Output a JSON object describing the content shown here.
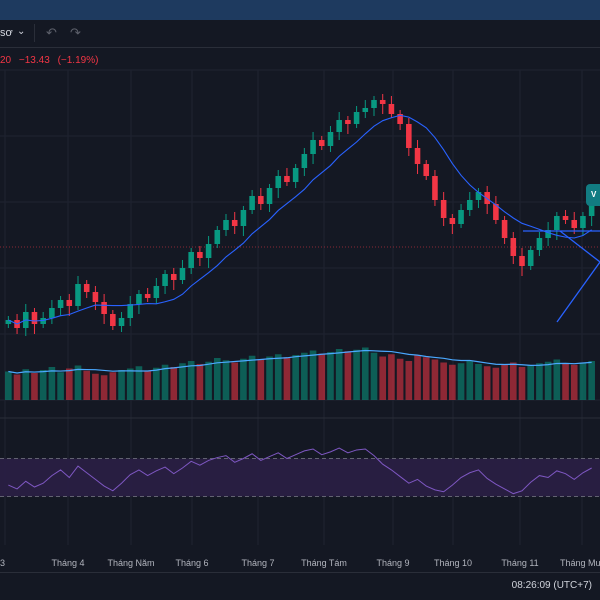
{
  "toolbar": {
    "interval_label": "sơ",
    "chevron_icon": "chevron-down-icon",
    "undo_icon": "undo-icon",
    "redo_icon": "redo-icon"
  },
  "legend": {
    "price_fragment": "20",
    "change": "−13.43",
    "change_percent": "(−1.19%)",
    "color_down": "#f23645"
  },
  "badge_text": "V",
  "x_axis": {
    "labels": [
      "3",
      "Tháng 4",
      "Tháng Năm",
      "Tháng 6",
      "Tháng 7",
      "Tháng Tám",
      "Tháng 9",
      "Tháng 10",
      "Tháng 11",
      "Tháng Mười"
    ]
  },
  "clock": "08:26:09 (UTC+7)",
  "colors": {
    "up": "#089981",
    "down": "#f23645",
    "ma": "#2962ff",
    "volume_ma": "#4aa8ff",
    "rsi": "#7e57c2",
    "rsi_band": "#2a1f45",
    "trendline": "#2962ff",
    "background": "#141823"
  },
  "chart_data": {
    "type": "candlestick",
    "months": [
      "3",
      "Tháng 4",
      "Tháng Năm",
      "Tháng 6",
      "Tháng 7",
      "Tháng Tám",
      "Tháng 9",
      "Tháng 10",
      "Tháng 11",
      "Tháng Mười"
    ],
    "close_series": [
      100,
      96,
      104,
      98,
      101,
      106,
      110,
      107,
      118,
      114,
      109,
      103,
      97,
      101,
      108,
      113,
      111,
      117,
      123,
      120,
      126,
      134,
      131,
      138,
      145,
      150,
      147,
      155,
      162,
      158,
      166,
      172,
      169,
      176,
      183,
      190,
      187,
      194,
      200,
      198,
      204,
      206,
      210,
      208,
      203,
      198,
      186,
      178,
      172,
      160,
      151,
      148,
      155,
      160,
      164,
      158,
      150,
      141,
      132,
      127,
      135,
      141,
      145,
      152,
      150,
      146,
      152,
      158
    ],
    "volume_series": [
      38,
      34,
      41,
      36,
      40,
      44,
      37,
      42,
      46,
      39,
      35,
      33,
      37,
      40,
      42,
      45,
      39,
      43,
      47,
      44,
      49,
      52,
      48,
      51,
      56,
      53,
      50,
      55,
      59,
      54,
      58,
      61,
      57,
      60,
      63,
      66,
      62,
      64,
      68,
      65,
      67,
      70,
      63,
      58,
      61,
      55,
      52,
      60,
      57,
      54,
      50,
      47,
      49,
      52,
      48,
      45,
      43,
      47,
      50,
      44,
      46,
      49,
      51,
      54,
      48,
      47,
      50,
      52
    ],
    "rsi_series": [
      42,
      38,
      46,
      40,
      44,
      52,
      58,
      50,
      62,
      55,
      48,
      41,
      36,
      44,
      53,
      58,
      52,
      57,
      61,
      54,
      60,
      67,
      63,
      68,
      71,
      73,
      66,
      70,
      75,
      68,
      72,
      76,
      70,
      74,
      78,
      80,
      74,
      77,
      81,
      76,
      79,
      80,
      73,
      64,
      58,
      51,
      44,
      48,
      41,
      37,
      35,
      42,
      50,
      55,
      58,
      49,
      43,
      38,
      33,
      36,
      45,
      52,
      50,
      57,
      54,
      48,
      55,
      60
    ],
    "rsi_levels": [
      70,
      30
    ],
    "overbought": 70,
    "oversold": 30
  }
}
